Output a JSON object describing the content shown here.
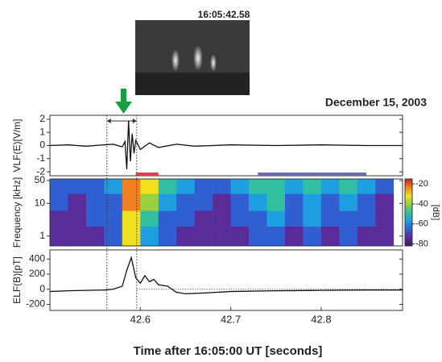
{
  "photo": {
    "caption": "16:05:42.58"
  },
  "chart_data": [
    {
      "type": "line",
      "title": "December 15, 2003",
      "ylabel": "VLF(E)[V/m]",
      "xlim": [
        42.5,
        42.89
      ],
      "ylim": [
        -2.3,
        2.3
      ],
      "yticks": [
        2,
        1,
        0,
        -1,
        -2
      ],
      "vlines": [
        42.563,
        42.596
      ],
      "color": "#111111",
      "x": [
        42.5,
        42.52,
        42.54,
        42.56,
        42.57,
        42.58,
        42.583,
        42.585,
        42.587,
        42.589,
        42.591,
        42.593,
        42.595,
        42.6,
        42.61,
        42.62,
        42.64,
        42.66,
        42.7,
        42.75,
        42.8,
        42.85,
        42.89
      ],
      "values": [
        0,
        0.05,
        -0.05,
        0.05,
        0.1,
        -0.1,
        0.3,
        -1.8,
        1.9,
        -1.2,
        0.9,
        -0.6,
        0.4,
        -0.3,
        0.2,
        -0.15,
        0.1,
        -0.05,
        0.05,
        0,
        0.05,
        0,
        0
      ]
    },
    {
      "type": "heatmap",
      "ylabel": "Frequency [kHz]",
      "log_y": true,
      "xlim": [
        42.5,
        42.89
      ],
      "ylim": [
        0.5,
        56
      ],
      "yticks": [
        50,
        10,
        1
      ],
      "x_edges": [
        42.5,
        42.52,
        42.54,
        42.56,
        42.58,
        42.6,
        42.62,
        42.64,
        42.66,
        42.68,
        42.7,
        42.72,
        42.74,
        42.76,
        42.78,
        42.8,
        42.82,
        42.84,
        42.86,
        42.88
      ],
      "y_edges": [
        0.5,
        2,
        6,
        20,
        56
      ],
      "z": [
        [
          -72,
          -75,
          -70,
          -68,
          -35,
          -55,
          -65,
          -70,
          -72,
          -74,
          -70,
          -68,
          -66,
          -70,
          -66,
          -72,
          -68,
          -70,
          -74
        ],
        [
          -70,
          -72,
          -68,
          -66,
          -30,
          -50,
          -62,
          -68,
          -70,
          -72,
          -68,
          -62,
          -60,
          -66,
          -60,
          -68,
          -62,
          -66,
          -72
        ],
        [
          -68,
          -70,
          -66,
          -64,
          -25,
          -40,
          -58,
          -66,
          -68,
          -70,
          -66,
          -55,
          -52,
          -62,
          -54,
          -64,
          -56,
          -62,
          -70
        ],
        [
          -64,
          -66,
          -62,
          -60,
          -22,
          -35,
          -50,
          -60,
          -62,
          -64,
          -60,
          -50,
          -50,
          -58,
          -48,
          -60,
          -50,
          -58,
          -66
        ]
      ],
      "colormap": [
        "#3a1460",
        "#5a2c9a",
        "#2f5fd0",
        "#1ea0e0",
        "#30c0a0",
        "#9ad040",
        "#f0e020",
        "#f08020",
        "#d02020"
      ],
      "clim": [
        -82,
        -15
      ],
      "colorbar_label": "[dB]",
      "colorbar_ticks": [
        -20,
        -40,
        -60,
        -80
      ],
      "spans": [
        {
          "x": [
            42.595,
            42.62
          ],
          "color": "#e0404a"
        },
        {
          "x": [
            42.73,
            42.85
          ],
          "color": "#6a6ab0"
        }
      ]
    },
    {
      "type": "line",
      "ylabel": "ELF(B)[pT]",
      "xlabel": "Time after 16:05:00 UT [seconds]",
      "xlim": [
        42.5,
        42.89
      ],
      "ylim": [
        -280,
        520
      ],
      "yticks": [
        400,
        200,
        0,
        -200
      ],
      "xticks": [
        42.6,
        42.7,
        42.8
      ],
      "color": "#111111",
      "x": [
        42.5,
        42.52,
        42.54,
        42.56,
        42.57,
        42.58,
        42.585,
        42.59,
        42.595,
        42.6,
        42.605,
        42.61,
        42.615,
        42.62,
        42.63,
        42.64,
        42.65,
        42.67,
        42.7,
        42.75,
        42.8,
        42.85,
        42.89
      ],
      "values": [
        -30,
        -20,
        -15,
        -10,
        0,
        40,
        250,
        420,
        150,
        80,
        180,
        100,
        130,
        60,
        40,
        -40,
        -60,
        -50,
        -30,
        -20,
        -15,
        -10,
        -10
      ]
    }
  ]
}
